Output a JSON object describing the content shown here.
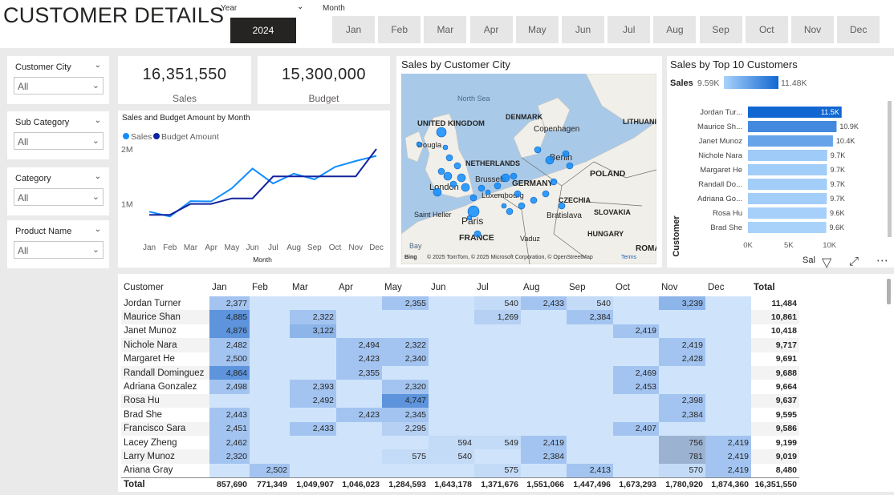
{
  "header": {
    "title": "CUSTOMER DETAILS",
    "year_label": "Year",
    "year_value": "2024",
    "month_label": "Month",
    "months": [
      "Jan",
      "Feb",
      "Mar",
      "Apr",
      "May",
      "Jun",
      "Jul",
      "Aug",
      "Sep",
      "Oct",
      "Nov",
      "Dec"
    ]
  },
  "slicers": [
    {
      "title": "Customer City",
      "value": "All"
    },
    {
      "title": "Sub Category",
      "value": "All"
    },
    {
      "title": "Category",
      "value": "All"
    },
    {
      "title": "Product Name",
      "value": "All"
    }
  ],
  "kpis": {
    "sales_value": "16,351,550",
    "sales_label": "Sales",
    "budget_value": "15,300,000",
    "budget_label": "Budget"
  },
  "map": {
    "title": "Sales by Customer City",
    "labels": [
      "North Sea",
      "DENMARK",
      "Copenhagen",
      "LITHUANI",
      "UNITED KINGDOM",
      "Dougla",
      "NETHERLANDS",
      "Berlin",
      "POLAND",
      "Brussels",
      "GERMANY",
      "London",
      "Luxembourg",
      "CZECHIA",
      "Saint Helier",
      "Paris",
      "Bratislava",
      "SLOVAKIA",
      "FRANCE",
      "HUNGARY",
      "Vaduz",
      "Bay",
      "ROMA"
    ],
    "attribution": "© 2025 TomTom, © 2025 Microsoft Corporation, © OpenStreetMap",
    "terms": "Terms",
    "bing": "Bing"
  },
  "chart_data": [
    {
      "type": "line",
      "title": "Sales and Budget Amount by Month",
      "xlabel": "Month",
      "ylabel": "",
      "categories": [
        "Jan",
        "Feb",
        "Mar",
        "Apr",
        "May",
        "Jun",
        "Jul",
        "Aug",
        "Sep",
        "Oct",
        "Nov",
        "Dec"
      ],
      "yticks": [
        "1M",
        "2M"
      ],
      "ylim": [
        600000,
        2000000
      ],
      "legend_position": "top-left",
      "series": [
        {
          "name": "Sales",
          "color": "#118DFF",
          "values": [
            857690,
            771349,
            1049907,
            1046023,
            1284593,
            1643178,
            1371676,
            1551066,
            1447496,
            1673293,
            1780920,
            1874360
          ]
        },
        {
          "name": "Budget Amount",
          "color": "#12239E",
          "values": [
            800000,
            800000,
            1000000,
            1000000,
            1100000,
            1100000,
            1500000,
            1500000,
            1500000,
            1500000,
            1500000,
            2000000
          ]
        }
      ]
    },
    {
      "type": "bar",
      "orientation": "horizontal",
      "title": "Sales by Top 10 Customers",
      "ylabel": "Customer",
      "xlabel": "Sal",
      "legend_label": "Sales",
      "legend_min": "9.59K",
      "legend_max": "11.48K",
      "xticks": [
        "0K",
        "5K",
        "10K"
      ],
      "xlim": [
        0,
        12000
      ],
      "categories": [
        "Jordan Tur...",
        "Maurice Sh...",
        "Janet Munoz",
        "Nichole Nara",
        "Margaret He",
        "Randall Do...",
        "Adriana Go...",
        "Rosa Hu",
        "Brad She"
      ],
      "values": [
        11484,
        10861,
        10418,
        9717,
        9691,
        9688,
        9664,
        9637,
        9595
      ],
      "value_labels": [
        "11.5K",
        "10.9K",
        "10.4K",
        "9.7K",
        "9.7K",
        "9.7K",
        "9.7K",
        "9.6K",
        "9.6K"
      ]
    },
    {
      "type": "table",
      "headers": [
        "Customer",
        "Jan",
        "Feb",
        "Mar",
        "Apr",
        "May",
        "Jun",
        "Jul",
        "Aug",
        "Sep",
        "Oct",
        "Nov",
        "Dec",
        "Total"
      ],
      "rows": [
        [
          "Jordan Turner",
          "2,377",
          "",
          "",
          "",
          "2,355",
          "",
          "540",
          "2,433",
          "540",
          "",
          "3,239",
          "",
          "11,484"
        ],
        [
          "Maurice Shan",
          "4,885",
          "",
          "2,322",
          "",
          "",
          "",
          "1,269",
          "",
          "2,384",
          "",
          "",
          "",
          "10,861"
        ],
        [
          "Janet Munoz",
          "4,876",
          "",
          "3,122",
          "",
          "",
          "",
          "",
          "",
          "",
          "2,419",
          "",
          "",
          "10,418"
        ],
        [
          "Nichole Nara",
          "2,482",
          "",
          "",
          "2,494",
          "2,322",
          "",
          "",
          "",
          "",
          "",
          "2,419",
          "",
          "9,717"
        ],
        [
          "Margaret He",
          "2,500",
          "",
          "",
          "2,423",
          "2,340",
          "",
          "",
          "",
          "",
          "",
          "2,428",
          "",
          "9,691"
        ],
        [
          "Randall Dominguez",
          "4,864",
          "",
          "",
          "2,355",
          "",
          "",
          "",
          "",
          "",
          "2,469",
          "",
          "",
          "9,688"
        ],
        [
          "Adriana Gonzalez",
          "2,498",
          "",
          "2,393",
          "",
          "2,320",
          "",
          "",
          "",
          "",
          "2,453",
          "",
          "",
          "9,664"
        ],
        [
          "Rosa Hu",
          "",
          "",
          "2,492",
          "",
          "4,747",
          "",
          "",
          "",
          "",
          "",
          "2,398",
          "",
          "9,637"
        ],
        [
          "Brad She",
          "2,443",
          "",
          "",
          "2,423",
          "2,345",
          "",
          "",
          "",
          "",
          "",
          "2,384",
          "",
          "9,595"
        ],
        [
          "Francisco Sara",
          "2,451",
          "",
          "2,433",
          "",
          "2,295",
          "",
          "",
          "",
          "",
          "2,407",
          "",
          "",
          "9,586"
        ],
        [
          "Lacey Zheng",
          "2,462",
          "",
          "",
          "",
          "",
          "594",
          "549",
          "2,419",
          "",
          "",
          "756",
          "2,419",
          "9,199"
        ],
        [
          "Larry Munoz",
          "2,320",
          "",
          "",
          "",
          "575",
          "540",
          "",
          "2,384",
          "",
          "",
          "781",
          "2,419",
          "9,019"
        ],
        [
          "Ariana Gray",
          "",
          "2,502",
          "",
          "",
          "",
          "",
          "575",
          "",
          "2,413",
          "",
          "570",
          "2,419",
          "8,480"
        ]
      ],
      "totals_label": "Total",
      "totals": [
        "857,690",
        "771,349",
        "1,049,907",
        "1,046,023",
        "1,284,593",
        "1,643,178",
        "1,371,676",
        "1,551,066",
        "1,447,496",
        "1,673,293",
        "1,780,920",
        "1,874,360",
        "16,351,550"
      ]
    }
  ]
}
